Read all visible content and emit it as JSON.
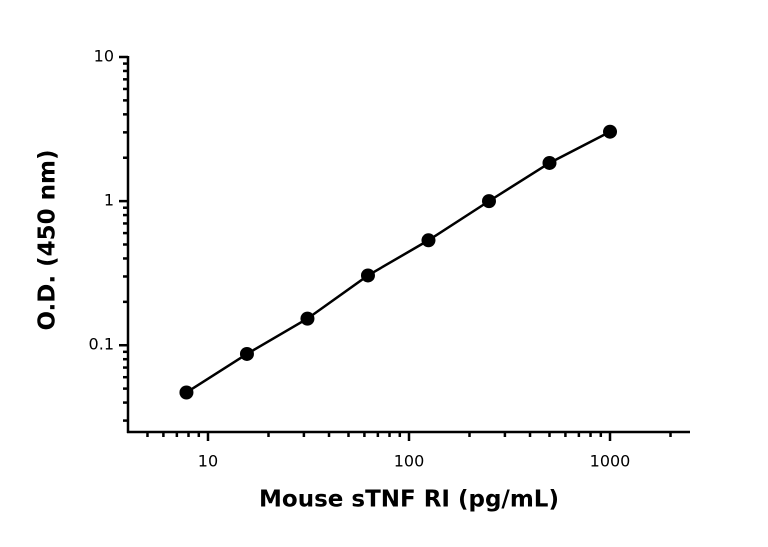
{
  "chart_data": {
    "type": "scatter",
    "x_label": "Mouse sTNF RI (pg/mL)",
    "y_label": "O.D. (450 nm)",
    "x_log": true,
    "y_log": true,
    "xlim": [
      4,
      2500
    ],
    "ylim": [
      0.025,
      10
    ],
    "xticks": [
      10,
      100,
      1000
    ],
    "yticks": [
      0.1,
      1,
      10
    ],
    "xminorticks": [
      5,
      6,
      7,
      8,
      9,
      20,
      30,
      40,
      50,
      60,
      70,
      80,
      90,
      200,
      300,
      400,
      500,
      600,
      700,
      800,
      900,
      2000
    ],
    "yminorticks": [
      0.03,
      0.04,
      0.05,
      0.06,
      0.07,
      0.08,
      0.09,
      0.2,
      0.3,
      0.4,
      0.5,
      0.6,
      0.7,
      0.8,
      0.9,
      2,
      3,
      4,
      5,
      6,
      7,
      8,
      9
    ],
    "connect": true,
    "color": "#000000",
    "x": [
      7.8125,
      15.625,
      31.25,
      62.5,
      125,
      250,
      500,
      1000
    ],
    "values": [
      0.047,
      0.087,
      0.153,
      0.305,
      0.535,
      1.0,
      1.84,
      3.03
    ]
  }
}
